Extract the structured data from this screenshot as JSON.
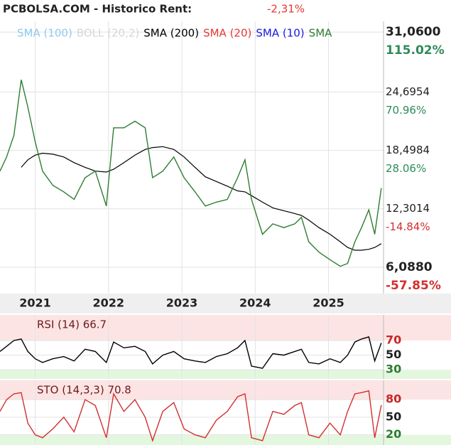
{
  "header": {
    "title": "PCBOLSA.COM - Historico  Rent:",
    "change": "-2,31%"
  },
  "chart_data": [
    {
      "type": "line",
      "color": "#2e7d32",
      "indicators": [
        {
          "name": "SMA (100)",
          "color": "#8ec9f0"
        },
        {
          "name": "BOLL (20,2)",
          "color": "#d6d6d6"
        },
        {
          "name": "SMA (20)",
          "color": "#e53935"
        },
        {
          "name": "SMA (10)",
          "color": "#1a1adf"
        },
        {
          "name": "SMA",
          "color": "#2e7d32"
        }
      ],
      "x": [
        2020.52,
        2020.61,
        2020.71,
        2020.81,
        2020.9,
        2021.0,
        2021.1,
        2021.24,
        2021.39,
        2021.53,
        2021.68,
        2021.82,
        2021.97,
        2022.07,
        2022.21,
        2022.36,
        2022.5,
        2022.6,
        2022.74,
        2022.89,
        2023.03,
        2023.18,
        2023.32,
        2023.47,
        2023.62,
        2023.76,
        2023.86,
        2023.95,
        2024.1,
        2024.24,
        2024.39,
        2024.54,
        2024.63,
        2024.73,
        2024.87,
        2025.02,
        2025.16,
        2025.26,
        2025.36,
        2025.45,
        2025.55,
        2025.63,
        2025.72
      ],
      "values": [
        16.3,
        17.8,
        20.1,
        26,
        23.1,
        19.4,
        16.3,
        14.8,
        14.1,
        13.3,
        15.6,
        16.3,
        12.6,
        20.9,
        20.9,
        21.6,
        20.9,
        15.6,
        16.3,
        17.8,
        15.6,
        14.1,
        12.6,
        13.0,
        13.3,
        15.6,
        17.5,
        13.3,
        9.6,
        10.7,
        10.3,
        10.7,
        11.4,
        8.8,
        7.7,
        6.9,
        6.2,
        6.5,
        8.8,
        10.3,
        12.2,
        9.6,
        14.5
      ],
      "series": [
        {
          "name": "SMA (200)",
          "color": "#000000",
          "values": [
            null,
            null,
            null,
            16.7,
            17.5,
            18.0,
            18.2,
            18.1,
            17.8,
            17.2,
            16.7,
            16.3,
            16.2,
            16.5,
            17.2,
            18.0,
            18.6,
            18.8,
            18.9,
            18.6,
            17.8,
            16.7,
            15.7,
            15.2,
            14.7,
            14.2,
            14.1,
            13.7,
            13.0,
            12.4,
            12.1,
            11.8,
            11.6,
            11.1,
            10.3,
            9.6,
            8.8,
            8.2,
            7.9,
            7.9,
            8.0,
            8.2,
            8.6
          ]
        }
      ],
      "xlim": [
        2020.52,
        2025.75
      ],
      "xticks": [
        2021,
        2022,
        2023,
        2024,
        2025
      ],
      "ylim": [
        3.3,
        32.2
      ],
      "yticks": [
        {
          "value": 31.06,
          "label": "31,0600"
        },
        {
          "value": 24.6954,
          "label": "24,6954"
        },
        {
          "value": 18.4984,
          "label": "18,4984"
        },
        {
          "value": 12.3014,
          "label": "12,3014"
        },
        {
          "value": 6.088,
          "label": "6,0880"
        }
      ],
      "ytick_changes": [
        "115.02%",
        "70.96%",
        "28.06%",
        "-14.84%",
        "-57.85%"
      ],
      "grid": true
    },
    {
      "type": "line",
      "title": "RSI (14) 66.7",
      "color": "#000000",
      "values": [
        55,
        62,
        70,
        72,
        55,
        45,
        40,
        45,
        48,
        42,
        58,
        55,
        40,
        68,
        60,
        62,
        55,
        38,
        50,
        55,
        45,
        42,
        40,
        48,
        52,
        60,
        70,
        35,
        32,
        52,
        50,
        55,
        58,
        40,
        38,
        45,
        40,
        50,
        68,
        72,
        75,
        42,
        66.7
      ],
      "ylim": [
        17.5,
        105
      ],
      "yticks": [
        70,
        50,
        30
      ]
    },
    {
      "type": "line",
      "title": "STO (14,3,3) 70.8",
      "color": "#d32f2f",
      "values": [
        60,
        80,
        90,
        92,
        40,
        20,
        15,
        30,
        50,
        25,
        80,
        70,
        15,
        90,
        60,
        80,
        50,
        10,
        60,
        75,
        30,
        20,
        15,
        45,
        60,
        85,
        90,
        15,
        10,
        60,
        55,
        70,
        75,
        20,
        15,
        40,
        20,
        60,
        90,
        92,
        95,
        15,
        70.8
      ],
      "ylim": [
        2.6,
        113
      ],
      "yticks": [
        80,
        50,
        20
      ]
    }
  ]
}
